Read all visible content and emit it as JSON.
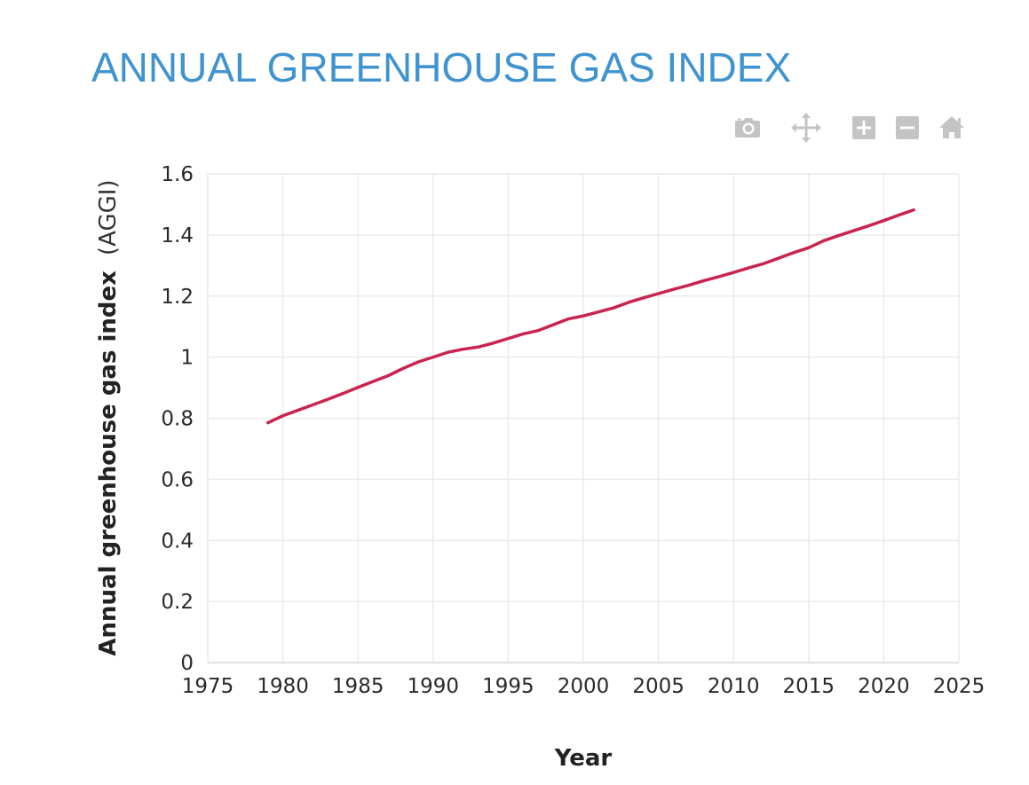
{
  "page": {
    "title": "ANNUAL GREENHOUSE GAS INDEX"
  },
  "modebar": {
    "buttons": [
      {
        "icon": "camera-icon",
        "name": "download-plot-button"
      },
      {
        "icon": "pan-icon",
        "name": "pan-button"
      },
      {
        "icon": "zoom-in-icon",
        "name": "zoom-in-button"
      },
      {
        "icon": "zoom-out-icon",
        "name": "zoom-out-button"
      },
      {
        "icon": "home-icon",
        "name": "reset-axes-button"
      }
    ],
    "color": "#c4c4c4"
  },
  "chart_data": {
    "type": "line",
    "xlabel": "Year",
    "ylabel_bold": "Annual greenhouse gas index",
    "ylabel_light": "(AGGI)",
    "xlim": [
      1975,
      2025
    ],
    "ylim": [
      0,
      1.6
    ],
    "xticks": [
      1975,
      1980,
      1985,
      1990,
      1995,
      2000,
      2005,
      2010,
      2015,
      2020,
      2025
    ],
    "yticks": [
      0,
      0.2,
      0.4,
      0.6,
      0.8,
      1,
      1.2,
      1.4,
      1.6
    ],
    "ytick_labels": [
      "0",
      "0.2",
      "0.4",
      "0.6",
      "0.8",
      "1",
      "1.2",
      "1.4",
      "1.6"
    ],
    "grid": true,
    "series": [
      {
        "color": "#c9234e",
        "x": [
          1979,
          1980,
          1981,
          1982,
          1983,
          1984,
          1985,
          1986,
          1987,
          1988,
          1989,
          1990,
          1991,
          1992,
          1993,
          1994,
          1995,
          1996,
          1997,
          1998,
          1999,
          2000,
          2001,
          2002,
          2003,
          2004,
          2005,
          2006,
          2007,
          2008,
          2009,
          2010,
          2011,
          2012,
          2013,
          2014,
          2015,
          2016,
          2017,
          2018,
          2019,
          2020,
          2021,
          2022
        ],
        "y": [
          0.785,
          0.808,
          0.826,
          0.844,
          0.862,
          0.881,
          0.901,
          0.92,
          0.939,
          0.963,
          0.984,
          1.0,
          1.016,
          1.026,
          1.033,
          1.046,
          1.061,
          1.076,
          1.087,
          1.106,
          1.125,
          1.135,
          1.148,
          1.161,
          1.179,
          1.194,
          1.208,
          1.222,
          1.235,
          1.25,
          1.263,
          1.277,
          1.292,
          1.306,
          1.324,
          1.342,
          1.358,
          1.381,
          1.398,
          1.414,
          1.43,
          1.447,
          1.465,
          1.482
        ]
      }
    ]
  }
}
